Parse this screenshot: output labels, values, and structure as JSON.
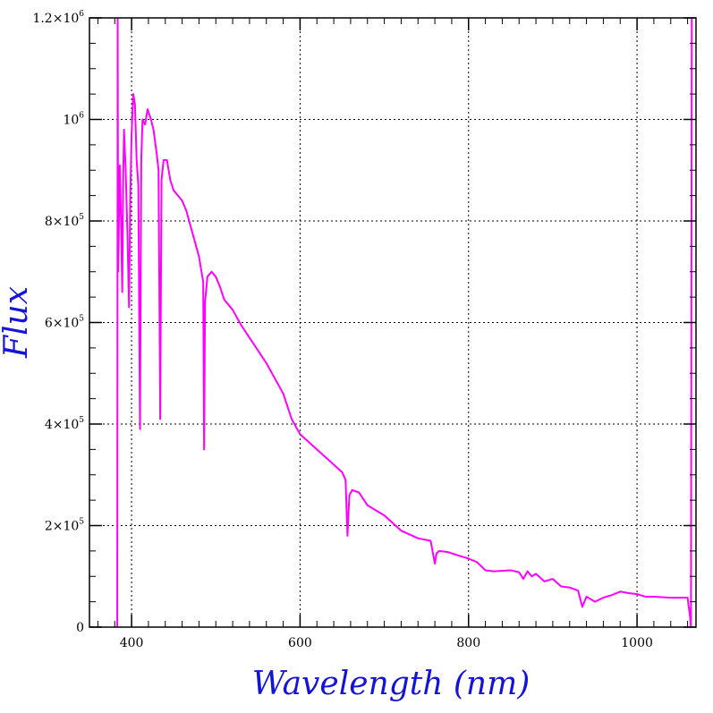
{
  "chart_data": {
    "type": "line",
    "title": "",
    "xlabel": "Wavelength (nm)",
    "ylabel": "Flux",
    "xlim": [
      350,
      1070
    ],
    "ylim": [
      0,
      1200000
    ],
    "grid": true,
    "x_ticks": [
      {
        "value": 400,
        "label": "400"
      },
      {
        "value": 600,
        "label": "600"
      },
      {
        "value": 800,
        "label": "800"
      },
      {
        "value": 1000,
        "label": "1000"
      }
    ],
    "y_ticks": [
      {
        "value": 0,
        "label": "0",
        "exp": ""
      },
      {
        "value": 200000,
        "label": "2×10",
        "exp": "5"
      },
      {
        "value": 400000,
        "label": "4×10",
        "exp": "5"
      },
      {
        "value": 600000,
        "label": "6×10",
        "exp": "5"
      },
      {
        "value": 800000,
        "label": "8×10",
        "exp": "5"
      },
      {
        "value": 1000000,
        "label": "10",
        "exp": "6"
      },
      {
        "value": 1200000,
        "label": "1.2×10",
        "exp": "6"
      }
    ],
    "series": [
      {
        "color": "#ff00ff",
        "points": [
          [
            383,
            0
          ],
          [
            383.5,
            1200000
          ],
          [
            384,
            700000
          ],
          [
            386,
            910000
          ],
          [
            387.5,
            800000
          ],
          [
            388.9,
            660000
          ],
          [
            390,
            880000
          ],
          [
            391,
            980000
          ],
          [
            393,
            900000
          ],
          [
            395,
            780000
          ],
          [
            397,
            630000
          ],
          [
            398.5,
            850000
          ],
          [
            400,
            970000
          ],
          [
            402,
            1050000
          ],
          [
            404,
            1030000
          ],
          [
            406,
            920000
          ],
          [
            408,
            870000
          ],
          [
            410,
            390000
          ],
          [
            411.5,
            920000
          ],
          [
            413,
            1000000
          ],
          [
            416,
            990000
          ],
          [
            419,
            1020000
          ],
          [
            423,
            1000000
          ],
          [
            426,
            980000
          ],
          [
            430,
            930000
          ],
          [
            432,
            900000
          ],
          [
            434,
            410000
          ],
          [
            435.5,
            880000
          ],
          [
            438,
            920000
          ],
          [
            442,
            920000
          ],
          [
            446,
            880000
          ],
          [
            450,
            860000
          ],
          [
            455,
            850000
          ],
          [
            460,
            840000
          ],
          [
            465,
            820000
          ],
          [
            470,
            790000
          ],
          [
            475,
            760000
          ],
          [
            480,
            730000
          ],
          [
            483,
            700000
          ],
          [
            485,
            680000
          ],
          [
            486.1,
            350000
          ],
          [
            487.2,
            640000
          ],
          [
            490,
            690000
          ],
          [
            495,
            700000
          ],
          [
            500,
            690000
          ],
          [
            505,
            670000
          ],
          [
            510,
            645000
          ],
          [
            520,
            625000
          ],
          [
            530,
            595000
          ],
          [
            540,
            570000
          ],
          [
            550,
            545000
          ],
          [
            560,
            520000
          ],
          [
            570,
            490000
          ],
          [
            580,
            460000
          ],
          [
            590,
            410000
          ],
          [
            600,
            380000
          ],
          [
            620,
            350000
          ],
          [
            640,
            320000
          ],
          [
            650,
            305000
          ],
          [
            654,
            290000
          ],
          [
            656.3,
            180000
          ],
          [
            658.5,
            260000
          ],
          [
            662,
            270000
          ],
          [
            670,
            265000
          ],
          [
            680,
            240000
          ],
          [
            690,
            230000
          ],
          [
            700,
            220000
          ],
          [
            720,
            190000
          ],
          [
            740,
            175000
          ],
          [
            755,
            170000
          ],
          [
            760,
            125000
          ],
          [
            762,
            145000
          ],
          [
            765,
            150000
          ],
          [
            775,
            148000
          ],
          [
            790,
            140000
          ],
          [
            800,
            135000
          ],
          [
            810,
            128000
          ],
          [
            820,
            112000
          ],
          [
            830,
            110000
          ],
          [
            850,
            112000
          ],
          [
            860,
            108000
          ],
          [
            865,
            95000
          ],
          [
            870,
            110000
          ],
          [
            875,
            100000
          ],
          [
            880,
            105000
          ],
          [
            890,
            90000
          ],
          [
            900,
            95000
          ],
          [
            910,
            80000
          ],
          [
            920,
            78000
          ],
          [
            930,
            72000
          ],
          [
            935,
            40000
          ],
          [
            940,
            60000
          ],
          [
            950,
            50000
          ],
          [
            960,
            58000
          ],
          [
            970,
            63000
          ],
          [
            980,
            70000
          ],
          [
            990,
            67000
          ],
          [
            1000,
            65000
          ],
          [
            1010,
            60000
          ],
          [
            1020,
            60000
          ],
          [
            1040,
            58000
          ],
          [
            1060,
            58000
          ],
          [
            1063,
            20000
          ],
          [
            1064,
            0
          ],
          [
            1065,
            1200000
          ]
        ]
      }
    ]
  }
}
